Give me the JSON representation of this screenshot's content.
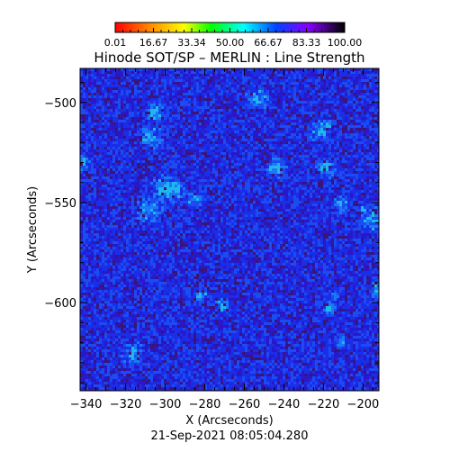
{
  "chart_data": {
    "type": "heatmap",
    "title": "Hinode SOT/SP – MERLIN : Line Strength",
    "xlabel": "X (Arcseconds)",
    "ylabel": "Y (Arcseconds)",
    "xlim": [
      -343,
      -192
    ],
    "ylim": [
      -644,
      -483
    ],
    "x_ticks": [
      -340,
      -320,
      -300,
      -280,
      -260,
      -240,
      -220,
      -200
    ],
    "y_ticks": [
      -500,
      -550,
      -600
    ],
    "x_tick_labels": [
      "−340",
      "−320",
      "−300",
      "−280",
      "−260",
      "−240",
      "−220",
      "−200"
    ],
    "y_tick_labels": [
      "−500",
      "−550",
      "−600"
    ],
    "colorbar": {
      "range": [
        0.01,
        100.0
      ],
      "tick_values": [
        0.01,
        16.67,
        33.34,
        50.0,
        66.67,
        83.33,
        100.0
      ],
      "tick_labels": [
        "0.01",
        "16.67",
        "33.34",
        "50.00",
        "66.67",
        "83.33",
        "100.00"
      ],
      "colormap": "rainbow"
    },
    "field_value_range": [
      60,
      95
    ],
    "typical_value": 82,
    "footer": "21-Sep-2021 08:05:04.280"
  }
}
